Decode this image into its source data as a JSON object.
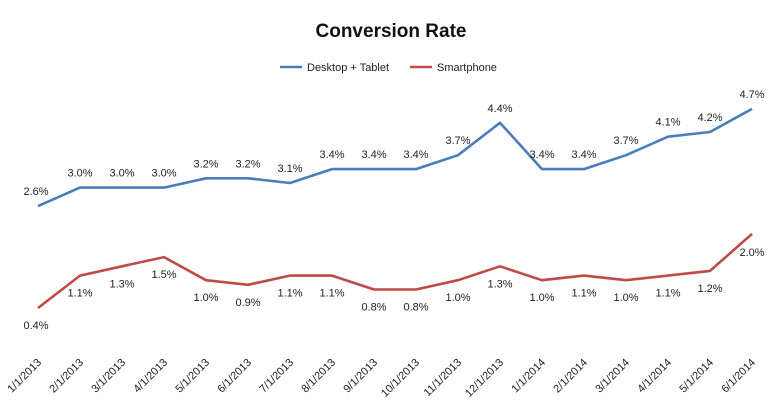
{
  "chart_data": {
    "type": "line",
    "title": "Conversion Rate",
    "xlabel": "",
    "ylabel": "",
    "ylim": [
      0,
      5
    ],
    "grid": false,
    "legend_position": "top-center",
    "categories": [
      "1/1/2013",
      "2/1/2013",
      "3/1/2013",
      "4/1/2013",
      "5/1/2013",
      "6/1/2013",
      "7/1/2013",
      "8/1/2013",
      "9/1/2013",
      "10/1/2013",
      "11/1/2013",
      "12/1/2013",
      "1/1/2014",
      "2/1/2014",
      "3/1/2014",
      "4/1/2014",
      "5/1/2014",
      "6/1/2014"
    ],
    "series": [
      {
        "name": "Desktop + Tablet",
        "color": "#4a7ebb",
        "values": [
          2.6,
          3.0,
          3.0,
          3.0,
          3.2,
          3.2,
          3.1,
          3.4,
          3.4,
          3.4,
          3.7,
          4.4,
          3.4,
          3.4,
          3.7,
          4.1,
          4.2,
          4.7
        ],
        "labels": [
          "2.6%",
          "3.0%",
          "3.0%",
          "3.0%",
          "3.2%",
          "3.2%",
          "3.1%",
          "3.4%",
          "3.4%",
          "3.4%",
          "3.7%",
          "4.4%",
          "3.4%",
          "3.4%",
          "3.7%",
          "4.1%",
          "4.2%",
          "4.7%"
        ]
      },
      {
        "name": "Smartphone",
        "color": "#be4b48",
        "values": [
          0.4,
          1.1,
          1.3,
          1.5,
          1.0,
          0.9,
          1.1,
          1.1,
          0.8,
          0.8,
          1.0,
          1.3,
          1.0,
          1.1,
          1.0,
          1.1,
          1.2,
          2.0
        ],
        "labels": [
          "0.4%",
          "1.1%",
          "1.3%",
          "1.5%",
          "1.0%",
          "0.9%",
          "1.1%",
          "1.1%",
          "0.8%",
          "0.8%",
          "1.0%",
          "1.3%",
          "1.0%",
          "1.1%",
          "1.0%",
          "1.1%",
          "1.2%",
          "2.0%"
        ]
      }
    ]
  }
}
